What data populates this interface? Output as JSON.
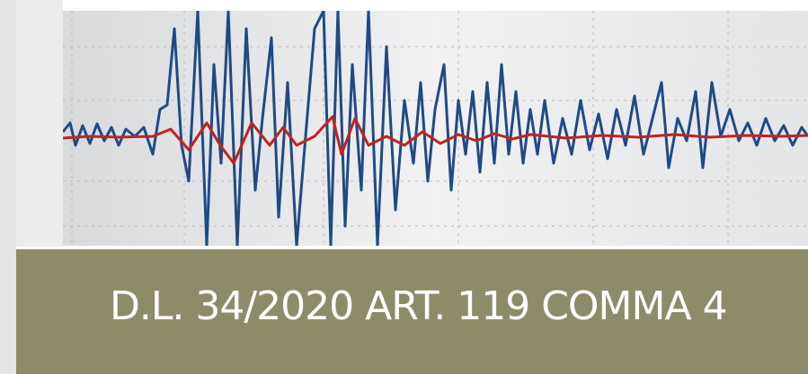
{
  "banner": {
    "text": "D.L. 34/2020 ART. 119 COMMA 4"
  }
}
